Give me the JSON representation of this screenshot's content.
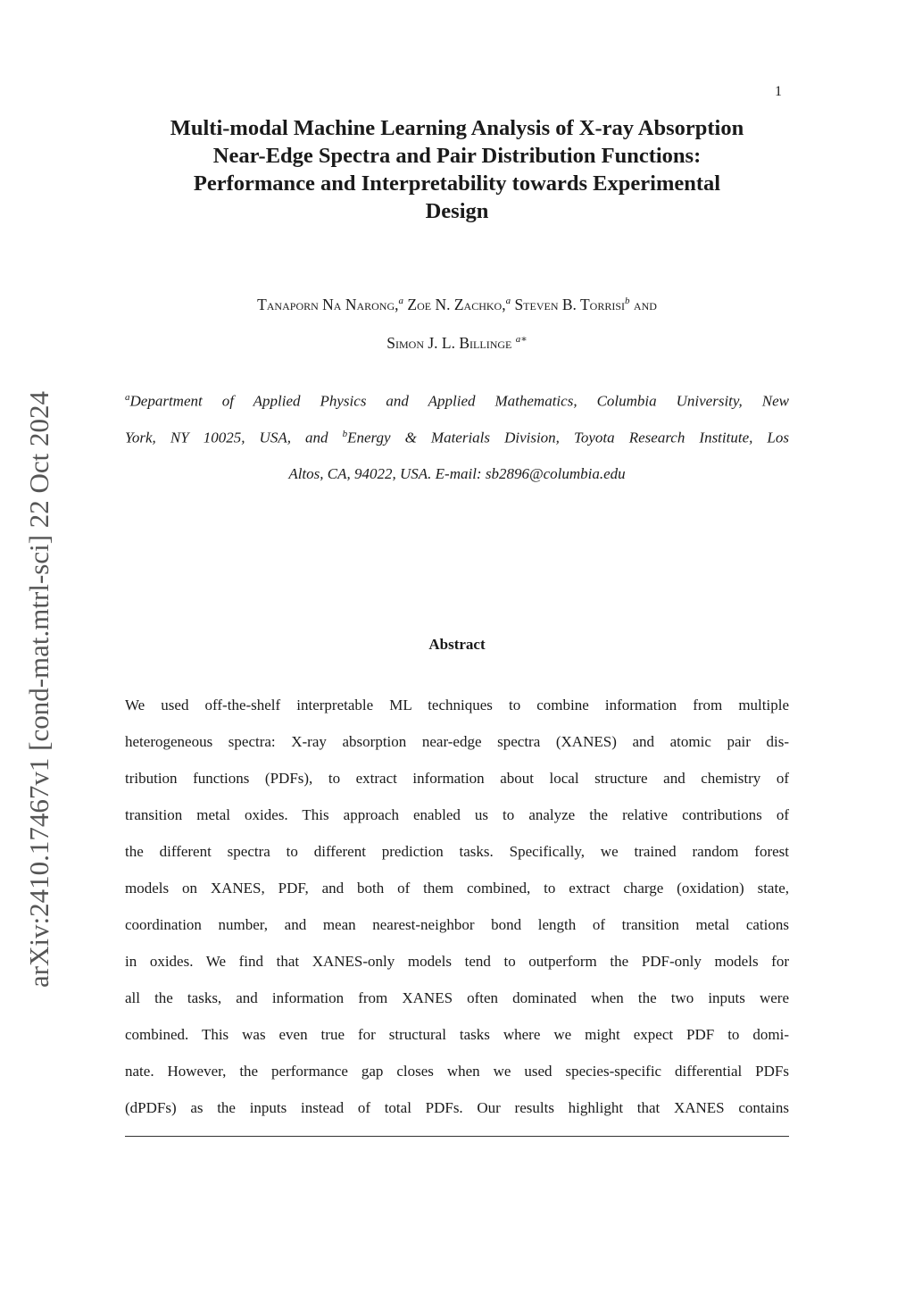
{
  "page_number": "1",
  "sidebar_identifier": "arXiv:2410.17467v1  [cond-mat.mtrl-sci]  22 Oct 2024",
  "title_lines": [
    "Multi-modal Machine Learning Analysis of X-ray Absorption",
    "Near-Edge Spectra and Pair Distribution Functions:",
    "Performance and Interpretability towards Experimental",
    "Design"
  ],
  "authors": {
    "a1": "Tanaporn Na Narong,",
    "a1_sup": "a",
    "a2": " Zoe N. Zachko,",
    "a2_sup": "a",
    "a3": " Steven B. Torrisi",
    "a3_sup": "b",
    "a3_after": " and",
    "a4": "Simon J. L. Billinge ",
    "a4_sup": "a∗"
  },
  "affiliations": {
    "sup_a": "a",
    "line1": "Department of Applied Physics and Applied Mathematics, Columbia University, New",
    "line2_pre": "York, NY 10025, USA, and ",
    "sup_b": "b",
    "line2_post": "Energy & Materials Division, Toyota Research Institute, Los",
    "line3": "Altos, CA, 94022, USA. E-mail: sb2896@columbia.edu"
  },
  "abstract_heading": "Abstract",
  "abstract_lines": [
    "We used off-the-shelf interpretable ML techniques to combine information from multiple",
    "heterogeneous spectra: X-ray absorption near-edge spectra (XANES) and atomic pair dis-",
    "tribution functions (PDFs), to extract information about local structure and chemistry of",
    "transition metal oxides. This approach enabled us to analyze the relative contributions of",
    "the different spectra to different prediction tasks. Specifically, we trained random forest",
    "models on XANES, PDF, and both of them combined, to extract charge (oxidation) state,",
    "coordination number, and mean nearest-neighbor bond length of transition metal cations",
    "in oxides. We find that XANES-only models tend to outperform the PDF-only models for",
    "all the tasks, and information from XANES often dominated when the two inputs were",
    "combined. This was even true for structural tasks where we might expect PDF to domi-",
    "nate. However, the performance gap closes when we used species-specific differential PDFs",
    "(dPDFs) as the inputs instead of total PDFs. Our results highlight that XANES contains"
  ]
}
